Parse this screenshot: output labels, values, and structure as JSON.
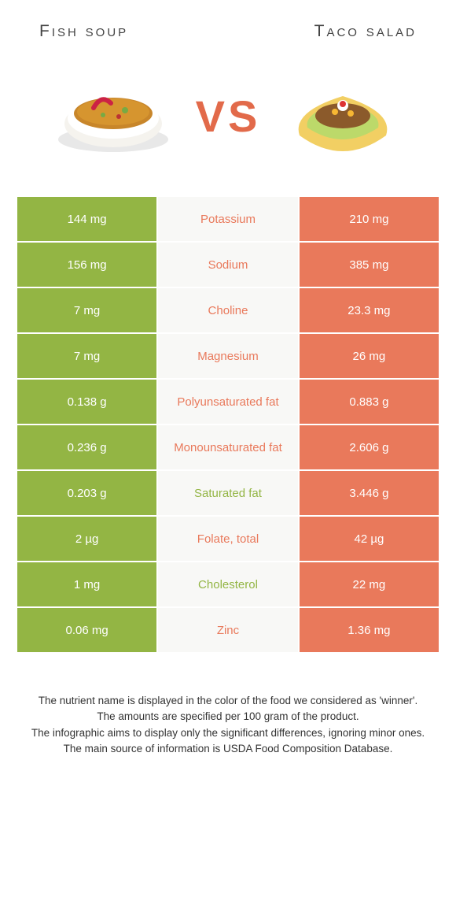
{
  "colors": {
    "left": "#93b544",
    "right": "#e9795b",
    "mid_bg": "#f8f8f6"
  },
  "foods": {
    "left": {
      "title": "Fish soup"
    },
    "right": {
      "title": "Taco salad"
    }
  },
  "vs": "VS",
  "rows": [
    {
      "left": "144 mg",
      "label": "Potassium",
      "right": "210 mg",
      "winner": "right"
    },
    {
      "left": "156 mg",
      "label": "Sodium",
      "right": "385 mg",
      "winner": "right"
    },
    {
      "left": "7 mg",
      "label": "Choline",
      "right": "23.3 mg",
      "winner": "right"
    },
    {
      "left": "7 mg",
      "label": "Magnesium",
      "right": "26 mg",
      "winner": "right"
    },
    {
      "left": "0.138 g",
      "label": "Polyunsaturated fat",
      "right": "0.883 g",
      "winner": "right"
    },
    {
      "left": "0.236 g",
      "label": "Monounsaturated fat",
      "right": "2.606 g",
      "winner": "right"
    },
    {
      "left": "0.203 g",
      "label": "Saturated fat",
      "right": "3.446 g",
      "winner": "left"
    },
    {
      "left": "2 µg",
      "label": "Folate, total",
      "right": "42 µg",
      "winner": "right"
    },
    {
      "left": "1 mg",
      "label": "Cholesterol",
      "right": "22 mg",
      "winner": "left"
    },
    {
      "left": "0.06 mg",
      "label": "Zinc",
      "right": "1.36 mg",
      "winner": "right"
    }
  ],
  "footer": [
    "The nutrient name is displayed in the color of the food we considered as 'winner'.",
    "The amounts are specified per 100 gram of the product.",
    "The infographic aims to display only the significant differences, ignoring minor ones.",
    "The main source of information is USDA Food Composition Database."
  ]
}
